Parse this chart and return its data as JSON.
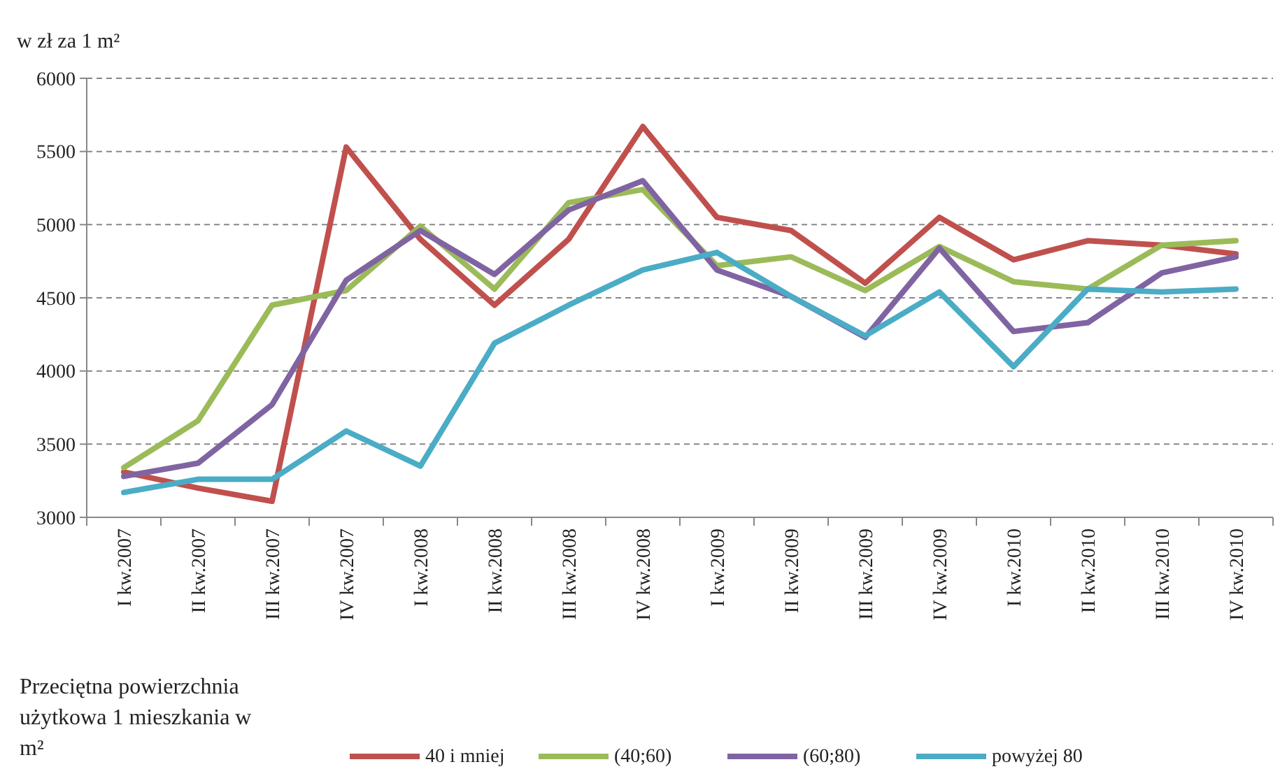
{
  "chart_data": {
    "type": "line",
    "ylabel": "w zł za 1 m²",
    "legend_title": "Przeciętna powierzchnia użytkowa 1 mieszkania w m²",
    "categories": [
      "I kw.2007",
      "II kw.2007",
      "III kw.2007",
      "IV kw.2007",
      "I kw.2008",
      "II kw.2008",
      "III kw.2008",
      "IV kw.2008",
      "I kw.2009",
      "II kw.2009",
      "III kw.2009",
      "IV kw.2009",
      "I kw.2010",
      "II kw.2010",
      "III kw.2010",
      "IV kw.2010"
    ],
    "series": [
      {
        "name": "40 i mniej",
        "color": "#c0504d",
        "values": [
          3310,
          3200,
          3110,
          5530,
          4900,
          4450,
          4900,
          5670,
          5050,
          4960,
          4600,
          5050,
          4760,
          4890,
          4860,
          4800
        ]
      },
      {
        "name": "(40;60)",
        "color": "#9bbb59",
        "values": [
          3340,
          3660,
          4450,
          4550,
          4990,
          4560,
          5150,
          5240,
          4720,
          4780,
          4550,
          4850,
          4610,
          4560,
          4860,
          4890
        ]
      },
      {
        "name": "(60;80)",
        "color": "#8064a2",
        "values": [
          3280,
          3370,
          3770,
          4620,
          4960,
          4660,
          5100,
          5300,
          4690,
          4510,
          4230,
          4840,
          4270,
          4330,
          4670,
          4780
        ]
      },
      {
        "name": "powyżej 80",
        "color": "#4bacc6",
        "values": [
          3170,
          3260,
          3260,
          3590,
          3350,
          4190,
          4450,
          4690,
          4810,
          4510,
          4240,
          4540,
          4030,
          4560,
          4540,
          4560
        ]
      }
    ],
    "ylim": [
      3000,
      6000
    ],
    "yticks": [
      3000,
      3500,
      4000,
      4500,
      5000,
      5500,
      6000
    ],
    "grid": "y",
    "legend": "bottom",
    "marker": "none",
    "line_style": "solid"
  }
}
